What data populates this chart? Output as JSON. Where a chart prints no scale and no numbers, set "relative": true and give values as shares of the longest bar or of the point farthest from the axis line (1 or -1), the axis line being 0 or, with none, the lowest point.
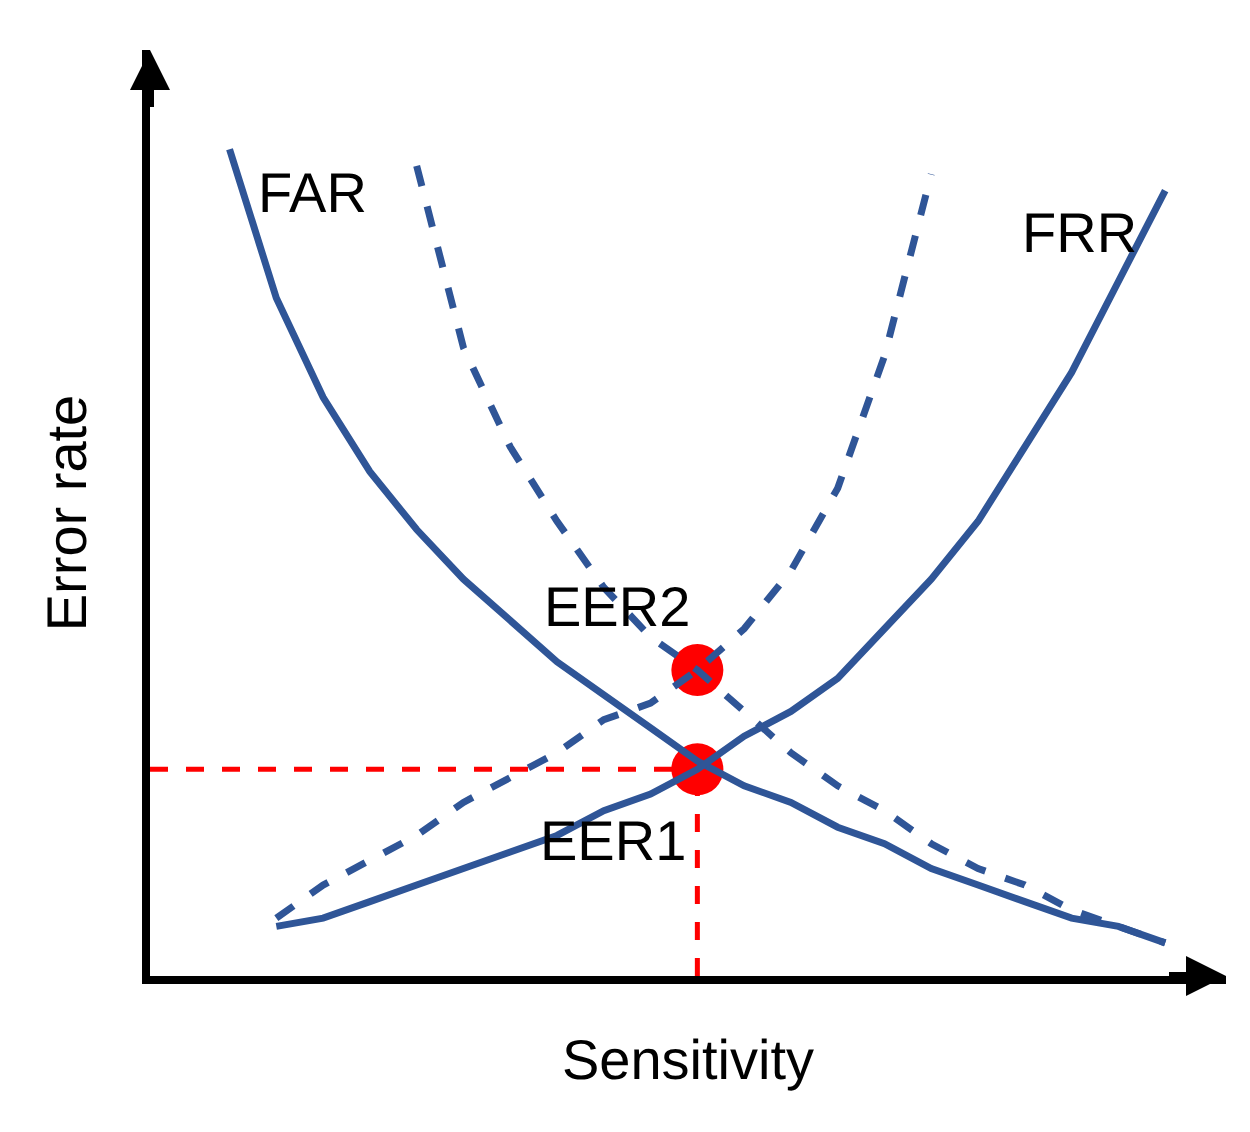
{
  "chart_data": {
    "type": "line",
    "relative": true,
    "xlabel": "Sensitivity",
    "ylabel": "Error rate",
    "legend": false,
    "grid": false,
    "categories": [
      null,
      null,
      null,
      null,
      null,
      null,
      null,
      null,
      null,
      null,
      null,
      null,
      null,
      null,
      null,
      null,
      null,
      null,
      null,
      null,
      null
    ],
    "series": [
      {
        "name": "FAR",
        "color": "#2f5597",
        "line_style": "solid",
        "values": [
          1.0,
          0.82,
          0.7,
          0.61,
          0.54,
          0.48,
          0.43,
          0.38,
          0.34,
          0.3,
          0.26,
          0.23,
          0.21,
          0.18,
          0.16,
          0.13,
          0.11,
          0.09,
          0.07,
          0.06,
          0.04
        ]
      },
      {
        "name": "FRR",
        "color": "#2f5597",
        "line_style": "solid",
        "values": [
          null,
          0.06,
          0.07,
          0.09,
          0.11,
          0.13,
          0.15,
          0.17,
          0.2,
          0.22,
          0.25,
          0.29,
          0.32,
          0.36,
          0.42,
          0.48,
          0.55,
          0.64,
          0.73,
          0.84,
          0.95
        ]
      },
      {
        "color": "#2f5597",
        "line_style": "dashed",
        "values": [
          null,
          null,
          null,
          null,
          0.98,
          0.76,
          0.64,
          0.55,
          0.47,
          0.41,
          0.37,
          0.32,
          0.27,
          0.23,
          0.2,
          0.16,
          0.13,
          0.11,
          0.08,
          0.06,
          0.04
        ]
      },
      {
        "color": "#2f5597",
        "line_style": "dashed",
        "values": [
          null,
          0.07,
          0.11,
          0.14,
          0.17,
          0.21,
          0.24,
          0.27,
          0.31,
          0.33,
          0.37,
          0.42,
          0.49,
          0.59,
          0.75,
          0.97,
          null,
          null,
          null,
          null,
          null
        ]
      },
      {
        "name": "EER2",
        "marker": "circle",
        "color": "#ff0000",
        "values": [
          null,
          null,
          null,
          null,
          null,
          null,
          null,
          null,
          null,
          null,
          0.37,
          null,
          null,
          null,
          null,
          null,
          null,
          null,
          null,
          null,
          null
        ]
      },
      {
        "name": "EER1",
        "marker": "circle",
        "color": "#ff0000",
        "values": [
          null,
          null,
          null,
          null,
          null,
          null,
          null,
          null,
          null,
          null,
          0.25,
          null,
          null,
          null,
          null,
          null,
          null,
          null,
          null,
          null,
          null
        ]
      }
    ],
    "ref_lines": [
      {
        "axis": "y",
        "value": 0.25,
        "color": "#ff0000",
        "line_style": "dashed"
      }
    ]
  }
}
